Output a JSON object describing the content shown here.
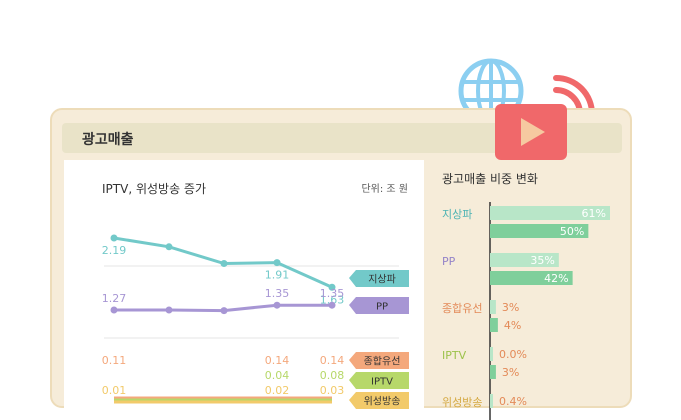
{
  "card": {
    "title": "광고매출"
  },
  "left": {
    "title": "IPTV, 위성방송 증가",
    "unit": "단위: 조 원"
  },
  "right": {
    "title": "광고매출 비중 변화"
  },
  "colors": {
    "terrestrial": "#72c9c9",
    "pp": "#a796d4",
    "cable": "#f4a87c",
    "iptv": "#b7d86a",
    "satellite": "#f2ca6a",
    "bar_old_terrestrial": "#b8e6c8",
    "bar_new": "#7fcf9b",
    "icon_red": "#f0686a",
    "icon_blue": "#8ccff1"
  },
  "chart_data": [
    {
      "type": "line",
      "title": "IPTV, 위성방송 증가",
      "unit": "단위: 조 원",
      "series": [
        {
          "name": "지상파",
          "values": [
            2.19,
            null,
            null,
            1.91,
            1.63
          ],
          "plot": [
            2.19,
            2.09,
            1.9,
            1.91,
            1.63
          ],
          "labels": [
            "2.19",
            "",
            "",
            "1.91",
            "1.63"
          ]
        },
        {
          "name": "PP",
          "values": [
            1.27,
            null,
            null,
            1.35,
            1.35
          ],
          "plot": [
            1.27,
            1.27,
            1.26,
            1.35,
            1.35
          ],
          "labels": [
            "1.27",
            "",
            "",
            "1.35",
            "1.35"
          ]
        },
        {
          "name": "종합유선",
          "values": [
            0.11,
            null,
            null,
            0.14,
            0.14
          ],
          "labels": [
            "0.11",
            "",
            "",
            "0.14",
            "0.14"
          ]
        },
        {
          "name": "IPTV",
          "values": [
            null,
            null,
            null,
            0.04,
            0.08
          ],
          "labels": [
            "",
            "",
            "",
            "0.04",
            "0.08"
          ]
        },
        {
          "name": "위성방송",
          "values": [
            0.01,
            null,
            null,
            0.02,
            0.03
          ],
          "labels": [
            "0.01",
            "",
            "",
            "0.02",
            "0.03"
          ]
        }
      ]
    },
    {
      "type": "bar",
      "title": "광고매출 비중 변화",
      "categories": [
        "지상파",
        "PP",
        "종합유선",
        "IPTV",
        "위성방송"
      ],
      "series": [
        {
          "values": [
            61,
            35,
            3,
            0.0,
            0.4
          ],
          "labels": [
            "61%",
            "35%",
            "3%",
            "0.0%",
            "0.4%"
          ]
        },
        {
          "values": [
            50,
            42,
            4,
            3,
            null
          ],
          "labels": [
            "50%",
            "42%",
            "4%",
            "3%",
            ""
          ]
        }
      ]
    }
  ]
}
